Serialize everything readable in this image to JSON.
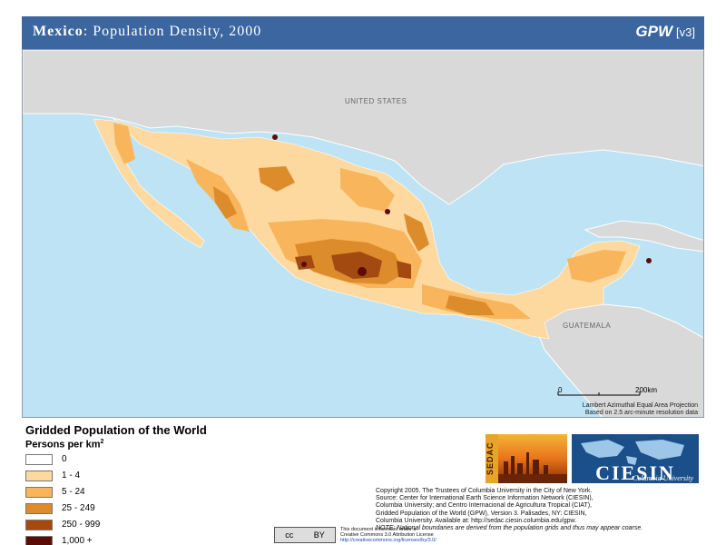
{
  "title": {
    "country": "Mexico",
    "rest": ": Population Density, 2000",
    "brand": "GPW",
    "version": "[v3]"
  },
  "map": {
    "labels": {
      "neighbor_north": "UNITED STATES",
      "neighbor_south": "GUATEMALA"
    },
    "scale": {
      "zero": "0",
      "distance": "200km"
    },
    "projection_note": [
      "Lambert Azimuthal Equal Area Projection",
      "Based on 2.5 arc-minute resolution data"
    ],
    "colors": {
      "ocean": "#bde3f4",
      "neighbor_land": "#d9d9d9",
      "border": "#ffffff"
    }
  },
  "legend": {
    "title": "Gridded Population of the World",
    "subtitle": "Persons per km",
    "subtitle_superscript": "2",
    "classes": [
      {
        "label": "0",
        "color": "#ffffff"
      },
      {
        "label": "1 - 4",
        "color": "#fdd9a0"
      },
      {
        "label": "5 - 24",
        "color": "#f8b55b"
      },
      {
        "label": "25 - 249",
        "color": "#dd8c2c"
      },
      {
        "label": "250 - 999",
        "color": "#a34a12"
      },
      {
        "label": "1,000 +",
        "color": "#5c0b05"
      }
    ]
  },
  "logos": {
    "sedac": "SEDAC",
    "ciesin": "CIESIN",
    "ciesin_sub": "Columbia University"
  },
  "copyright": {
    "lines": [
      "Copyright 2005. The Trustees of Columbia University in the City of New York.",
      "Source: Center for International Earth Science Information Network (CIESIN),",
      "Columbia University; and Centro Internacional de Agricultura Tropical (CIAT),",
      "Gridded Population of the World (GPW), Version 3. Palisades, NY: CIESIN,",
      "Columbia University. Available at: http://sedac.ciesin.columbia.edu/gpw."
    ],
    "note": "NOTE: National boundaries are derived from the population grids and thus may appear coarse."
  },
  "license": {
    "badge_left": "cc",
    "badge_right": "BY",
    "line1": "This document is licensed under a",
    "line2": "Creative Commons 3.0 Attribution License",
    "line3": "http://creativecommons.org/licenses/by/3.0/"
  }
}
